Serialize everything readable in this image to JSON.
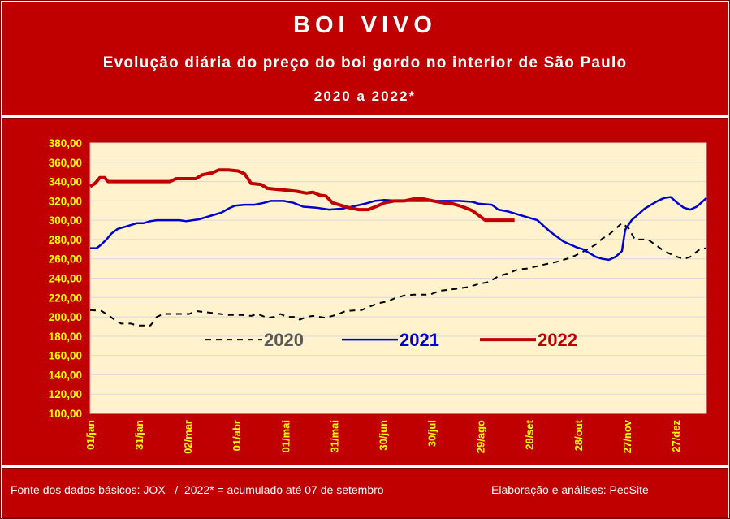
{
  "header": {
    "title": "BOI VIVO",
    "subtitle": "Evolução diária do preço do boi gordo no interior de São Paulo",
    "period": "2020 a 2022*"
  },
  "footer": {
    "source": "Fonte dos dados básicos: JOX   /  2022* = acumulado até 07 de setembro",
    "credit": "Elaboração e análises: PecSite"
  },
  "colors": {
    "frame": "#c00000",
    "plot_bg": "#fff2cc",
    "tick_text": "#ffff00",
    "series_2020": "#000000",
    "series_2021": "#0000cc",
    "series_2022": "#c00000",
    "legend_2020_text": "#595959"
  },
  "chart_data": {
    "type": "line",
    "title": "BOI VIVO",
    "subtitle": "Evolução diária do preço do boi gordo no interior de São Paulo",
    "x_unit": "day of year",
    "x_tick_labels": [
      "01/jan",
      "31/jan",
      "02/mar",
      "01/abr",
      "01/mai",
      "31/mai",
      "30/jun",
      "30/jul",
      "29/ago",
      "28/set",
      "28/out",
      "27/nov",
      "27/dez"
    ],
    "x_tick_days": [
      1,
      31,
      61,
      91,
      121,
      151,
      181,
      211,
      241,
      271,
      301,
      331,
      361
    ],
    "xlim": [
      1,
      380
    ],
    "y_tick_labels": [
      "100,00",
      "120,00",
      "140,00",
      "160,00",
      "180,00",
      "200,00",
      "220,00",
      "240,00",
      "260,00",
      "280,00",
      "300,00",
      "320,00",
      "340,00",
      "360,00",
      "380,00"
    ],
    "ylim": [
      100,
      380
    ],
    "grid": true,
    "legend_position": "center",
    "series": [
      {
        "name": "2020",
        "style": "dashed",
        "points": [
          [
            1,
            207
          ],
          [
            8,
            206
          ],
          [
            12,
            202
          ],
          [
            16,
            197
          ],
          [
            20,
            193
          ],
          [
            26,
            193
          ],
          [
            30,
            191
          ],
          [
            34,
            191
          ],
          [
            38,
            191
          ],
          [
            40,
            195
          ],
          [
            42,
            200
          ],
          [
            46,
            203
          ],
          [
            56,
            203
          ],
          [
            62,
            203
          ],
          [
            66,
            206
          ],
          [
            76,
            204
          ],
          [
            86,
            202
          ],
          [
            94,
            202
          ],
          [
            100,
            201
          ],
          [
            104,
            203
          ],
          [
            110,
            199
          ],
          [
            114,
            200
          ],
          [
            118,
            203
          ],
          [
            122,
            200
          ],
          [
            127,
            200
          ],
          [
            130,
            197
          ],
          [
            134,
            200
          ],
          [
            138,
            201
          ],
          [
            146,
            199
          ],
          [
            150,
            201
          ],
          [
            154,
            203
          ],
          [
            158,
            206
          ],
          [
            168,
            207
          ],
          [
            172,
            210
          ],
          [
            178,
            214
          ],
          [
            184,
            216
          ],
          [
            188,
            219
          ],
          [
            194,
            222
          ],
          [
            200,
            223
          ],
          [
            210,
            223
          ],
          [
            216,
            227
          ],
          [
            226,
            229
          ],
          [
            234,
            231
          ],
          [
            240,
            234
          ],
          [
            246,
            236
          ],
          [
            252,
            242
          ],
          [
            258,
            245
          ],
          [
            264,
            249
          ],
          [
            270,
            250
          ],
          [
            280,
            254
          ],
          [
            288,
            257
          ],
          [
            296,
            261
          ],
          [
            300,
            264
          ],
          [
            306,
            269
          ],
          [
            312,
            275
          ],
          [
            316,
            281
          ],
          [
            320,
            285
          ],
          [
            324,
            291
          ],
          [
            328,
            297
          ],
          [
            332,
            292
          ],
          [
            336,
            280
          ],
          [
            344,
            280
          ],
          [
            350,
            273
          ],
          [
            354,
            268
          ],
          [
            358,
            265
          ],
          [
            362,
            262
          ],
          [
            366,
            260
          ],
          [
            370,
            262
          ],
          [
            376,
            270
          ],
          [
            380,
            271
          ]
        ]
      },
      {
        "name": "2021",
        "style": "solid",
        "points": [
          [
            1,
            271
          ],
          [
            5,
            271
          ],
          [
            8,
            275
          ],
          [
            11,
            280
          ],
          [
            14,
            286
          ],
          [
            18,
            291
          ],
          [
            24,
            294
          ],
          [
            30,
            297
          ],
          [
            34,
            297
          ],
          [
            38,
            299
          ],
          [
            42,
            300
          ],
          [
            50,
            300
          ],
          [
            56,
            300
          ],
          [
            60,
            299
          ],
          [
            64,
            300
          ],
          [
            68,
            301
          ],
          [
            72,
            303
          ],
          [
            78,
            306
          ],
          [
            82,
            308
          ],
          [
            86,
            312
          ],
          [
            90,
            315
          ],
          [
            96,
            316
          ],
          [
            102,
            316
          ],
          [
            108,
            318
          ],
          [
            112,
            320
          ],
          [
            120,
            320
          ],
          [
            126,
            318
          ],
          [
            132,
            314
          ],
          [
            140,
            313
          ],
          [
            148,
            311
          ],
          [
            156,
            312
          ],
          [
            162,
            314
          ],
          [
            170,
            317
          ],
          [
            176,
            320
          ],
          [
            182,
            321
          ],
          [
            192,
            320
          ],
          [
            202,
            320
          ],
          [
            212,
            320
          ],
          [
            220,
            320
          ],
          [
            228,
            320
          ],
          [
            236,
            319
          ],
          [
            240,
            317
          ],
          [
            248,
            316
          ],
          [
            252,
            311
          ],
          [
            258,
            309
          ],
          [
            264,
            306
          ],
          [
            270,
            303
          ],
          [
            276,
            300
          ],
          [
            280,
            294
          ],
          [
            284,
            288
          ],
          [
            288,
            283
          ],
          [
            292,
            278
          ],
          [
            296,
            275
          ],
          [
            300,
            272
          ],
          [
            304,
            270
          ],
          [
            308,
            266
          ],
          [
            312,
            262
          ],
          [
            316,
            260
          ],
          [
            320,
            259
          ],
          [
            324,
            262
          ],
          [
            328,
            268
          ],
          [
            330,
            290
          ],
          [
            334,
            300
          ],
          [
            338,
            306
          ],
          [
            342,
            312
          ],
          [
            346,
            316
          ],
          [
            350,
            320
          ],
          [
            354,
            323
          ],
          [
            358,
            324
          ],
          [
            362,
            318
          ],
          [
            366,
            313
          ],
          [
            370,
            311
          ],
          [
            374,
            314
          ],
          [
            378,
            320
          ],
          [
            380,
            323
          ]
        ]
      },
      {
        "name": "2022",
        "style": "solid",
        "points": [
          [
            1,
            335
          ],
          [
            4,
            338
          ],
          [
            7,
            344
          ],
          [
            10,
            344
          ],
          [
            12,
            340
          ],
          [
            20,
            340
          ],
          [
            30,
            340
          ],
          [
            40,
            340
          ],
          [
            50,
            340
          ],
          [
            54,
            343
          ],
          [
            60,
            343
          ],
          [
            66,
            343
          ],
          [
            70,
            347
          ],
          [
            76,
            349
          ],
          [
            80,
            352
          ],
          [
            86,
            352
          ],
          [
            92,
            351
          ],
          [
            96,
            348
          ],
          [
            100,
            338
          ],
          [
            106,
            337
          ],
          [
            110,
            333
          ],
          [
            116,
            332
          ],
          [
            122,
            331
          ],
          [
            128,
            330
          ],
          [
            134,
            328
          ],
          [
            138,
            329
          ],
          [
            142,
            326
          ],
          [
            146,
            325
          ],
          [
            150,
            318
          ],
          [
            154,
            316
          ],
          [
            160,
            313
          ],
          [
            166,
            311
          ],
          [
            172,
            311
          ],
          [
            178,
            315
          ],
          [
            182,
            318
          ],
          [
            188,
            320
          ],
          [
            194,
            320
          ],
          [
            200,
            322
          ],
          [
            206,
            322
          ],
          [
            212,
            320
          ],
          [
            218,
            318
          ],
          [
            224,
            317
          ],
          [
            230,
            314
          ],
          [
            236,
            310
          ],
          [
            240,
            305
          ],
          [
            244,
            300
          ],
          [
            250,
            300
          ],
          [
            256,
            300
          ],
          [
            262,
            300
          ]
        ]
      }
    ]
  }
}
